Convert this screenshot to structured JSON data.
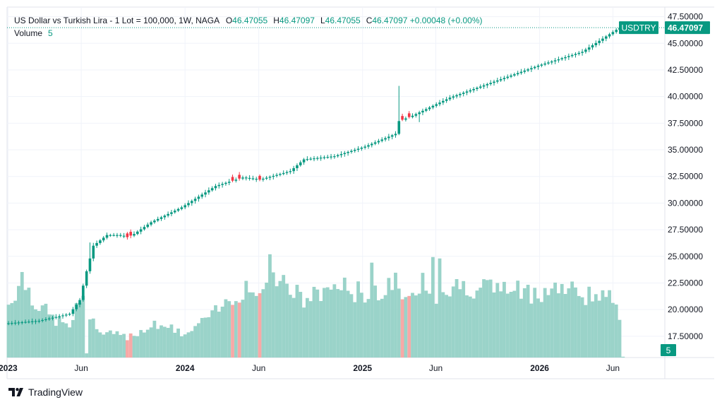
{
  "header": {
    "symbol_name": "US Dollar vs Turkish Lira - 1 Lot = 100,000, 1W, NAGA",
    "ohlc": [
      {
        "key": "O",
        "value": "46.47055"
      },
      {
        "key": "H",
        "value": "46.47097"
      },
      {
        "key": "L",
        "value": "46.47055"
      },
      {
        "key": "C",
        "value": "46.47097"
      }
    ],
    "change": "+0.00048 (+0.00%)",
    "volume_label": "Volume",
    "volume_value": "5"
  },
  "badges": {
    "symbol": "USDTRY",
    "last_price": "46.47097",
    "volume": "5"
  },
  "branding": {
    "name": "TradingView"
  },
  "colors": {
    "up": "#089981",
    "down": "#f23645",
    "volume_up": "#9ad3c9",
    "volume_down": "#f7a9a7",
    "grid": "#f0f3fa",
    "axis_text": "#131722"
  },
  "chart_data": {
    "type": "candlestick",
    "timeframe": "1W",
    "x_start": "2023-01-02",
    "x_end": "2026-06-15",
    "x_tick_labels": [
      "2023",
      "Jun",
      "2024",
      "Jun",
      "2025",
      "Jun",
      "2026",
      "Jun"
    ],
    "x_tick_dates": [
      "2023-01-01",
      "2023-06-01",
      "2024-01-01",
      "2024-06-01",
      "2025-01-01",
      "2025-06-01",
      "2026-01-01",
      "2026-06-01"
    ],
    "y_ticks": [
      "17.50000",
      "20.00000",
      "22.50000",
      "25.00000",
      "27.50000",
      "30.00000",
      "32.50000",
      "35.00000",
      "37.50000",
      "40.00000",
      "42.50000",
      "45.00000",
      "47.50000"
    ],
    "ylim": [
      15.5,
      48.4
    ],
    "last_price": 46.47097,
    "anchors": [
      {
        "date": "2023-01-02",
        "close": 18.72
      },
      {
        "date": "2023-03-06",
        "close": 18.95
      },
      {
        "date": "2023-05-08",
        "close": 19.6
      },
      {
        "date": "2023-05-29",
        "close": 20.9
      },
      {
        "date": "2023-06-12",
        "close": 23.6
      },
      {
        "date": "2023-06-26",
        "close": 26.0
      },
      {
        "date": "2023-07-24",
        "close": 27.0
      },
      {
        "date": "2023-08-14",
        "close": 27.0
      },
      {
        "date": "2023-09-04",
        "close": 26.8
      },
      {
        "date": "2023-09-18",
        "close": 27.1
      },
      {
        "date": "2023-10-23",
        "close": 28.2
      },
      {
        "date": "2023-12-25",
        "close": 29.6
      },
      {
        "date": "2024-03-04",
        "close": 31.6
      },
      {
        "date": "2024-04-29",
        "close": 32.4
      },
      {
        "date": "2024-06-03",
        "close": 32.2
      },
      {
        "date": "2024-08-05",
        "close": 33.0
      },
      {
        "date": "2024-09-02",
        "close": 34.1
      },
      {
        "date": "2024-11-04",
        "close": 34.4
      },
      {
        "date": "2025-01-06",
        "close": 35.3
      },
      {
        "date": "2025-03-10",
        "close": 36.5
      },
      {
        "date": "2025-03-17",
        "close": 37.7
      },
      {
        "date": "2025-04-14",
        "close": 38.2
      },
      {
        "date": "2025-06-30",
        "close": 39.9
      },
      {
        "date": "2025-12-29",
        "close": 42.9
      },
      {
        "date": "2026-03-30",
        "close": 44.2
      },
      {
        "date": "2026-06-15",
        "close": 46.47
      }
    ],
    "spikes": [
      {
        "date": "2023-06-19",
        "high": 26.3
      },
      {
        "date": "2025-03-17",
        "high": 41.0
      },
      {
        "date": "2025-04-28",
        "low": 37.6
      }
    ],
    "red_candles": [
      "2023-09-04",
      "2023-09-11",
      "2024-04-08",
      "2024-04-22",
      "2024-06-03",
      "2025-03-24",
      "2025-04-07"
    ],
    "volume": {
      "ylim": [
        0,
        80
      ],
      "anchors": [
        {
          "date": "2023-01-02",
          "value": 38
        },
        {
          "date": "2023-01-30",
          "value": 58
        },
        {
          "date": "2023-02-27",
          "value": 40
        },
        {
          "date": "2023-04-03",
          "value": 28
        },
        {
          "date": "2023-05-08",
          "value": 22
        },
        {
          "date": "2023-06-05",
          "value": 45
        },
        {
          "date": "2023-07-03",
          "value": 18
        },
        {
          "date": "2023-09-04",
          "value": 15
        },
        {
          "date": "2023-11-06",
          "value": 25
        },
        {
          "date": "2024-01-01",
          "value": 16
        },
        {
          "date": "2024-03-04",
          "value": 32
        },
        {
          "date": "2024-05-06",
          "value": 52
        },
        {
          "date": "2024-06-03",
          "value": 45
        },
        {
          "date": "2024-07-01",
          "value": 62
        },
        {
          "date": "2024-09-02",
          "value": 40
        },
        {
          "date": "2024-11-04",
          "value": 52
        },
        {
          "date": "2025-01-06",
          "value": 45
        },
        {
          "date": "2025-03-03",
          "value": 55
        },
        {
          "date": "2025-04-07",
          "value": 38
        },
        {
          "date": "2025-05-05",
          "value": 60
        },
        {
          "date": "2025-06-02",
          "value": 45
        },
        {
          "date": "2025-08-04",
          "value": 52
        },
        {
          "date": "2025-10-06",
          "value": 50
        },
        {
          "date": "2025-12-01",
          "value": 46
        },
        {
          "date": "2026-02-02",
          "value": 50
        },
        {
          "date": "2026-05-04",
          "value": 44
        },
        {
          "date": "2026-06-01",
          "value": 40
        }
      ],
      "spikes": [
        {
          "date": "2023-06-12",
          "value": 3
        },
        {
          "date": "2024-06-24",
          "value": 74
        },
        {
          "date": "2025-01-20",
          "value": 68
        },
        {
          "date": "2025-05-26",
          "value": 72
        },
        {
          "date": "2025-06-09",
          "value": 71
        },
        {
          "date": "2026-06-15",
          "value": 27
        },
        {
          "date": "2026-06-22",
          "value": 0.5
        }
      ]
    }
  }
}
